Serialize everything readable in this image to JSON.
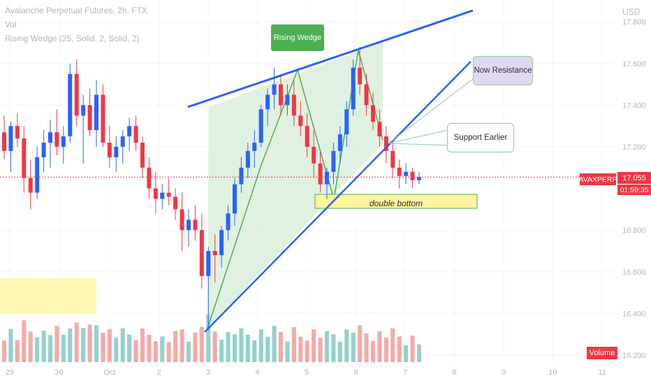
{
  "header": {
    "title": "Avalanche Perpetual Futures, 2h, FTX",
    "vol": "Vol",
    "indicator": "Rising Wedge (25, Solid, 2, Solid, 2)"
  },
  "price_axis": {
    "currency": "USD",
    "ticks": [
      "17.800",
      "17.600",
      "17.400",
      "17.200",
      "16.800",
      "16.600",
      "16.400",
      "16.200"
    ]
  },
  "time_axis": {
    "ticks": [
      "29",
      "30",
      "Oct",
      "2",
      "3",
      "4",
      "5",
      "6",
      "7",
      "8",
      "9",
      "10",
      "11"
    ]
  },
  "price_tag": {
    "symbol": "AVAXPERP",
    "price": "17.055",
    "countdown": "01:59:35"
  },
  "volume_tag": "Volume",
  "annotations": {
    "pattern": "Rising Wedge",
    "resistance": "Now Resistance",
    "support": "Support Earlier",
    "double_bottom": "double bottom"
  },
  "colors": {
    "up": "#2962ff",
    "down": "#f23645",
    "trendline": "#2962ff",
    "wedge_fill": "#c8e6c9",
    "wedge_line": "#4caf50",
    "zone": "#fff59d"
  },
  "chart_data": {
    "type": "candlestick",
    "ylim": [
      16.2,
      17.85
    ],
    "candles": [
      [
        17.27,
        17.35,
        17.14,
        17.18
      ],
      [
        17.18,
        17.32,
        17.08,
        17.3
      ],
      [
        17.3,
        17.36,
        17.2,
        17.24
      ],
      [
        17.24,
        17.3,
        16.98,
        17.05
      ],
      [
        17.05,
        17.14,
        16.9,
        16.98
      ],
      [
        16.98,
        17.2,
        16.95,
        17.15
      ],
      [
        17.15,
        17.28,
        17.08,
        17.22
      ],
      [
        17.22,
        17.33,
        17.1,
        17.27
      ],
      [
        17.27,
        17.38,
        17.16,
        17.2
      ],
      [
        17.2,
        17.3,
        17.12,
        17.25
      ],
      [
        17.25,
        17.6,
        17.22,
        17.55
      ],
      [
        17.55,
        17.62,
        17.3,
        17.35
      ],
      [
        17.35,
        17.45,
        17.12,
        17.4
      ],
      [
        17.4,
        17.48,
        17.25,
        17.28
      ],
      [
        17.28,
        17.52,
        17.2,
        17.45
      ],
      [
        17.45,
        17.5,
        17.2,
        17.22
      ],
      [
        17.22,
        17.3,
        17.1,
        17.15
      ],
      [
        17.15,
        17.25,
        17.08,
        17.2
      ],
      [
        17.2,
        17.28,
        17.12,
        17.25
      ],
      [
        17.25,
        17.34,
        17.18,
        17.3
      ],
      [
        17.3,
        17.35,
        17.18,
        17.22
      ],
      [
        17.22,
        17.25,
        17.05,
        17.1
      ],
      [
        17.1,
        17.15,
        16.95,
        17.0
      ],
      [
        17.0,
        17.08,
        16.88,
        16.95
      ],
      [
        16.95,
        17.02,
        16.9,
        16.98
      ],
      [
        16.98,
        17.05,
        16.92,
        16.96
      ],
      [
        16.96,
        17.0,
        16.85,
        16.9
      ],
      [
        16.9,
        16.98,
        16.7,
        16.8
      ],
      [
        16.8,
        16.9,
        16.72,
        16.85
      ],
      [
        16.85,
        16.92,
        16.75,
        16.8
      ],
      [
        16.8,
        16.88,
        16.52,
        16.58
      ],
      [
        16.58,
        16.72,
        16.32,
        16.7
      ],
      [
        16.7,
        16.78,
        16.55,
        16.68
      ],
      [
        16.68,
        16.82,
        16.62,
        16.8
      ],
      [
        16.8,
        16.92,
        16.75,
        16.88
      ],
      [
        16.88,
        17.05,
        16.82,
        17.02
      ],
      [
        17.02,
        17.15,
        16.98,
        17.1
      ],
      [
        17.1,
        17.22,
        17.05,
        17.18
      ],
      [
        17.18,
        17.28,
        17.1,
        17.22
      ],
      [
        17.22,
        17.4,
        17.2,
        17.38
      ],
      [
        17.38,
        17.48,
        17.3,
        17.45
      ],
      [
        17.45,
        17.58,
        17.38,
        17.5
      ],
      [
        17.5,
        17.55,
        17.35,
        17.4
      ],
      [
        17.4,
        17.5,
        17.35,
        17.45
      ],
      [
        17.45,
        17.52,
        17.3,
        17.35
      ],
      [
        17.35,
        17.42,
        17.25,
        17.3
      ],
      [
        17.3,
        17.36,
        17.15,
        17.2
      ],
      [
        17.2,
        17.28,
        17.05,
        17.12
      ],
      [
        17.12,
        17.18,
        16.98,
        17.02
      ],
      [
        17.02,
        17.1,
        16.95,
        17.08
      ],
      [
        17.08,
        17.22,
        17.02,
        17.18
      ],
      [
        17.18,
        17.3,
        17.12,
        17.26
      ],
      [
        17.26,
        17.42,
        17.2,
        17.38
      ],
      [
        17.38,
        17.62,
        17.35,
        17.58
      ],
      [
        17.58,
        17.68,
        17.45,
        17.5
      ],
      [
        17.5,
        17.55,
        17.35,
        17.4
      ],
      [
        17.4,
        17.46,
        17.28,
        17.32
      ],
      [
        17.32,
        17.38,
        17.2,
        17.25
      ],
      [
        17.25,
        17.3,
        17.12,
        17.18
      ],
      [
        17.18,
        17.22,
        17.05,
        17.1
      ],
      [
        17.1,
        17.14,
        17.0,
        17.06
      ],
      [
        17.06,
        17.12,
        17.02,
        17.08
      ],
      [
        17.08,
        17.1,
        17.0,
        17.04
      ],
      [
        17.04,
        17.08,
        17.02,
        17.055
      ]
    ],
    "volume_label": "Volume"
  }
}
